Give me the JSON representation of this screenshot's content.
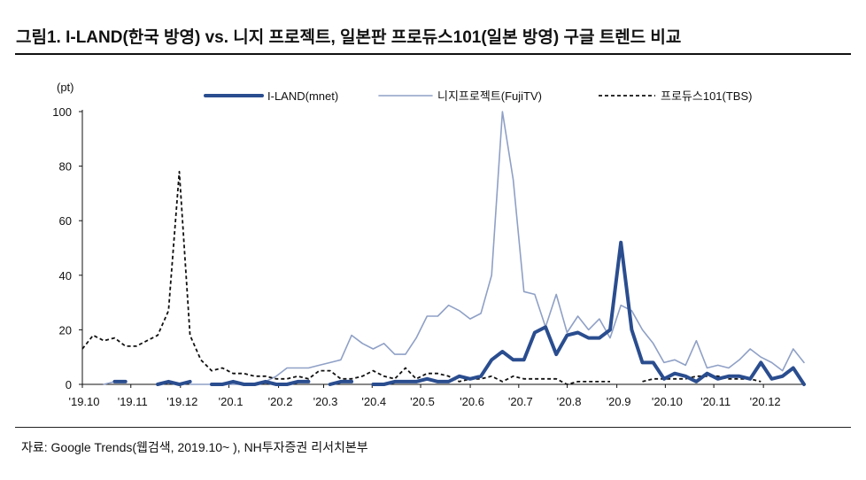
{
  "title": "그림1. I-LAND(한국 방영) vs. 니지 프로젝트, 일본판 프로듀스101(일본 방영) 구글 트렌드 비교",
  "source": "자료: Google Trends(웹검색, 2019.10~ ), NH투자증권 리서치본부",
  "chart_data": {
    "type": "line",
    "title": "그림1. I-LAND(한국 방영) vs. 니지 프로젝트, 일본판 프로듀스101(일본 방영) 구글 트렌드 비교",
    "ylabel": "(pt)",
    "xlabel": "",
    "ylim": [
      0,
      100
    ],
    "yticks": [
      0,
      20,
      40,
      60,
      80,
      100
    ],
    "x_weeks": 64,
    "xticks": [
      {
        "label": "'19.10",
        "week": 0
      },
      {
        "label": "'19.11",
        "week": 4.3
      },
      {
        "label": "'19.12",
        "week": 8.7
      },
      {
        "label": "'20.1",
        "week": 13
      },
      {
        "label": "'20.2",
        "week": 17.4
      },
      {
        "label": "'20.3",
        "week": 21.4
      },
      {
        "label": "'20.4",
        "week": 25.7
      },
      {
        "label": "'20.5",
        "week": 30
      },
      {
        "label": "'20.6",
        "week": 34.4
      },
      {
        "label": "'20.7",
        "week": 38.7
      },
      {
        "label": "'20.8",
        "week": 43
      },
      {
        "label": "'20.9",
        "week": 47.4
      },
      {
        "label": "'20.10",
        "week": 51.7
      },
      {
        "label": "'20.11",
        "week": 56
      },
      {
        "label": "'20.12",
        "week": 60.4
      }
    ],
    "legend_position": "top",
    "series": [
      {
        "name": "I-LAND(mnet)",
        "color": "#2a4d8f",
        "style": "thick",
        "values": [
          null,
          null,
          null,
          1,
          1,
          null,
          null,
          0,
          1,
          0,
          1,
          null,
          0,
          0,
          1,
          0,
          0,
          1,
          0,
          0,
          1,
          1,
          null,
          0,
          1,
          1,
          null,
          0,
          0,
          1,
          1,
          1,
          2,
          1,
          1,
          3,
          2,
          3,
          9,
          12,
          9,
          9,
          19,
          21,
          11,
          18,
          19,
          17,
          17,
          20,
          52,
          20,
          8,
          8,
          2,
          4,
          3,
          1,
          4,
          2,
          3,
          3,
          2,
          8,
          2,
          3,
          6,
          0
        ]
      },
      {
        "name": "니지프로젝트(FujiTV)",
        "color": "#8fa0c6",
        "style": "thin",
        "values": [
          null,
          null,
          0,
          1,
          null,
          null,
          null,
          null,
          null,
          null,
          0,
          0,
          0,
          0,
          0,
          0,
          0,
          1,
          3,
          6,
          6,
          6,
          7,
          8,
          9,
          18,
          15,
          13,
          15,
          11,
          11,
          17,
          25,
          25,
          29,
          27,
          24,
          26,
          40,
          100,
          75,
          34,
          33,
          21,
          33,
          19,
          25,
          20,
          24,
          17,
          29,
          27,
          20,
          15,
          8,
          9,
          7,
          16,
          6,
          7,
          6,
          9,
          13,
          10,
          8,
          5,
          13,
          8
        ]
      },
      {
        "name": "프로듀스101(TBS)",
        "color": "#111111",
        "style": "dashed",
        "values": [
          13,
          18,
          16,
          17,
          14,
          14,
          16,
          18,
          27,
          78,
          18,
          9,
          5,
          6,
          4,
          4,
          3,
          3,
          2,
          2,
          3,
          2,
          5,
          5,
          2,
          2,
          3,
          5,
          3,
          2,
          6,
          2,
          4,
          4,
          3,
          1,
          2,
          2,
          3,
          1,
          3,
          2,
          2,
          2,
          2,
          0,
          1,
          1,
          1,
          1,
          null,
          null,
          1,
          2,
          2,
          2,
          2,
          3,
          3,
          3,
          2,
          2,
          2,
          1,
          null,
          null,
          null,
          null
        ]
      }
    ]
  }
}
